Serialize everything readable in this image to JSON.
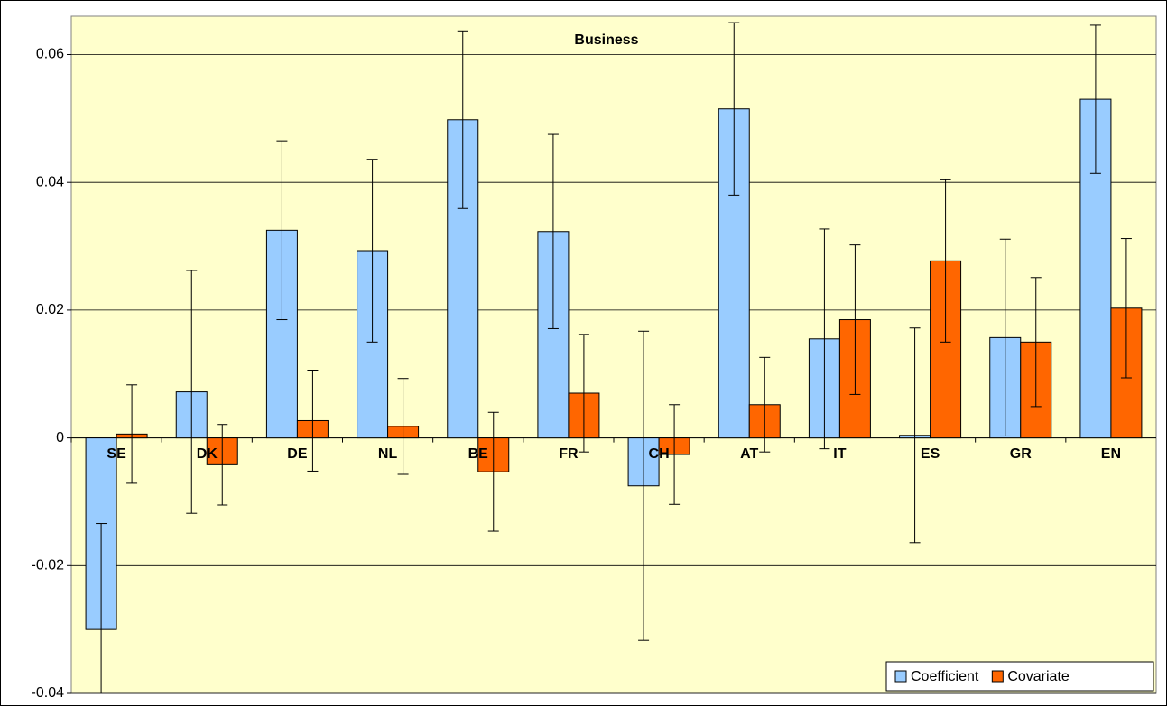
{
  "chart_data": {
    "type": "bar",
    "title": "Business",
    "categories": [
      "SE",
      "DK",
      "DE",
      "NL",
      "BE",
      "FR",
      "CH",
      "AT",
      "IT",
      "ES",
      "GR",
      "EN"
    ],
    "series": [
      {
        "name": "Coefficient",
        "color": "#99ccff",
        "values": [
          -0.03,
          0.0072,
          0.0325,
          0.0293,
          0.0498,
          0.0323,
          -0.0075,
          0.0515,
          0.0155,
          0.0004,
          0.0157,
          0.053
        ],
        "errors": [
          0.0166,
          0.019,
          0.014,
          0.0143,
          0.0139,
          0.0152,
          0.0242,
          0.0135,
          0.0172,
          0.0168,
          0.0154,
          0.0116
        ]
      },
      {
        "name": "Covariate",
        "color": "#ff6600",
        "values": [
          0.0006,
          -0.0042,
          0.0027,
          0.0018,
          -0.0053,
          0.007,
          -0.0026,
          0.0052,
          0.0185,
          0.0277,
          0.015,
          0.0203
        ],
        "errors": [
          0.0077,
          0.0063,
          0.0079,
          0.0075,
          0.0093,
          0.0092,
          0.0078,
          0.0074,
          0.0117,
          0.0127,
          0.0101,
          0.0109
        ]
      }
    ],
    "ylim": [
      -0.04,
      0.066
    ],
    "yticks": [
      -0.04,
      -0.02,
      0,
      0.02,
      0.04,
      0.06
    ],
    "grid": true,
    "legend": "lower-right"
  }
}
